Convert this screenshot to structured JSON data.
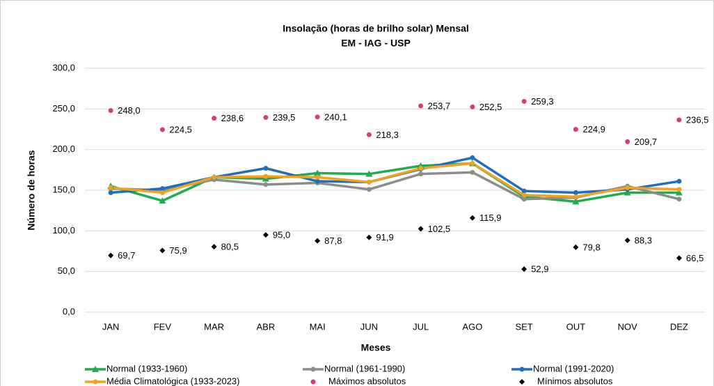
{
  "chart_data": {
    "type": "line",
    "title": "Insolação (horas de brilho solar) Mensal",
    "subtitle": "EM - IAG - USP",
    "x_label": "Meses",
    "y_label": "Número de horas",
    "categories": [
      "JAN",
      "FEV",
      "MAR",
      "ABR",
      "MAI",
      "JUN",
      "JUL",
      "AGO",
      "SET",
      "OUT",
      "NOV",
      "DEZ"
    ],
    "ylim": [
      0,
      300
    ],
    "yticks": [
      {
        "value": 0,
        "label": "0,0"
      },
      {
        "value": 50,
        "label": "50,0"
      },
      {
        "value": 100,
        "label": "100,0"
      },
      {
        "value": 150,
        "label": "150,0"
      },
      {
        "value": 200,
        "label": "200,0"
      },
      {
        "value": 250,
        "label": "250,0"
      },
      {
        "value": 300,
        "label": "300,0"
      }
    ],
    "grid": true,
    "legend": "bottom",
    "series": [
      {
        "name": "Normal (1933-1960)",
        "color": "#1fad4f",
        "marker": "triangle",
        "line": true,
        "values": [
          155,
          137,
          166,
          164,
          171,
          170,
          180,
          183,
          142,
          136,
          147,
          147
        ]
      },
      {
        "name": "Normal (1961-1990)",
        "color": "#8c8c8c",
        "marker": "circle",
        "line": true,
        "values": [
          152,
          150,
          163,
          157,
          159,
          151,
          170,
          172,
          139,
          141,
          155,
          139
        ]
      },
      {
        "name": "Normal (1991-2020)",
        "color": "#1f6fbf",
        "marker": "circle",
        "line": true,
        "values": [
          147,
          152,
          166,
          177,
          161,
          160,
          176,
          190,
          149,
          147,
          151,
          161
        ]
      },
      {
        "name": "Média Climatológica (1933-2023)",
        "color": "#f2a21c",
        "marker": "circle",
        "line": true,
        "values": [
          153,
          147,
          166,
          167,
          166,
          160,
          177,
          183,
          144,
          142,
          153,
          151
        ]
      },
      {
        "name": "Máximos absolutos",
        "color": "#d0416f",
        "marker": "circle",
        "line": false,
        "values": [
          248.0,
          224.5,
          238.6,
          239.5,
          240.1,
          218.3,
          253.7,
          252.5,
          259.3,
          224.9,
          209.7,
          236.5
        ],
        "value_labels": [
          "248,0",
          "224,5",
          "238,6",
          "239,5",
          "240,1",
          "218,3",
          "253,7",
          "252,5",
          "259,3",
          "224,9",
          "209,7",
          "236,5"
        ]
      },
      {
        "name": "Mínimos absolutos",
        "color": "#000000",
        "marker": "diamond",
        "line": false,
        "values": [
          69.7,
          75.9,
          80.5,
          95.0,
          87.8,
          91.9,
          102.5,
          115.9,
          52.9,
          79.8,
          88.3,
          66.5
        ],
        "value_labels": [
          "69,7",
          "75,9",
          "80,5",
          "95,0",
          "87,8",
          "91,9",
          "102,5",
          "115,9",
          "52,9",
          "79,8",
          "88,3",
          "66,5"
        ]
      }
    ]
  }
}
